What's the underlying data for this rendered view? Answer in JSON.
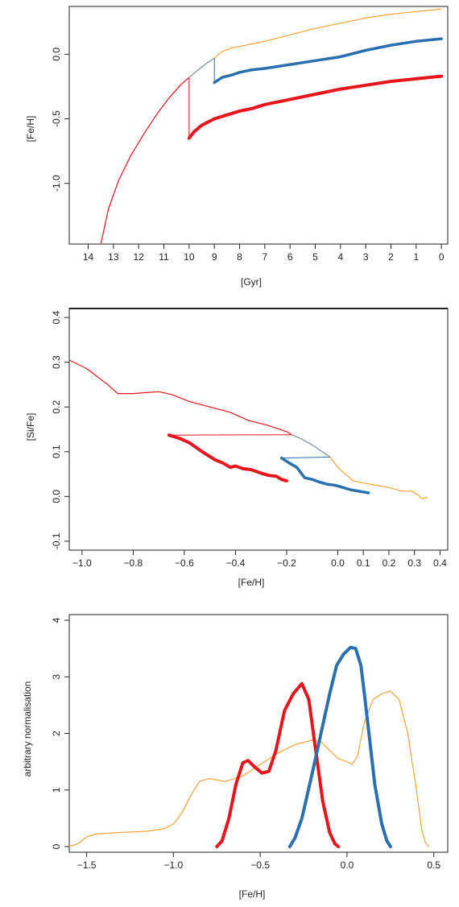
{
  "colors": {
    "red": "#e8141b",
    "blue": "#2a6fb0",
    "orange": "#f4a23c",
    "grey": "#7d8c9c",
    "axis": "#222222"
  },
  "chart_data": [
    {
      "type": "line",
      "xlabel": "[Gyr]",
      "ylabel": "[Fe/H]",
      "xlim": [
        14.75,
        -0.25
      ],
      "ylim": [
        -1.47,
        0.37
      ],
      "x_reversed": true,
      "xticks": [
        14,
        13,
        12,
        11,
        10,
        9,
        8,
        7,
        6,
        5,
        4,
        3,
        2,
        1,
        0
      ],
      "xtick_labels": [
        "14",
        "13",
        "12",
        "11",
        "10",
        "9",
        "8",
        "7",
        "6",
        "5",
        "4",
        "3",
        "2",
        "1",
        "0"
      ],
      "yticks": [
        0.0,
        -0.5,
        -1.0
      ],
      "ytick_labels": [
        "0.0",
        "-0.5",
        "-1.0"
      ],
      "series": [
        {
          "color": "red",
          "width": 1.2,
          "points": [
            [
              13.5,
              -1.47
            ],
            [
              13.2,
              -1.2
            ],
            [
              12.8,
              -0.98
            ],
            [
              12.3,
              -0.78
            ],
            [
              11.8,
              -0.62
            ],
            [
              11.3,
              -0.47
            ],
            [
              10.8,
              -0.34
            ],
            [
              10.3,
              -0.23
            ],
            [
              10.0,
              -0.18
            ]
          ]
        },
        {
          "color": "red",
          "width": 1.0,
          "points": [
            [
              10.0,
              -0.18
            ],
            [
              10.0,
              -0.65
            ]
          ]
        },
        {
          "color": "red",
          "width": 4.0,
          "points": [
            [
              10.0,
              -0.65
            ],
            [
              9.8,
              -0.6
            ],
            [
              9.5,
              -0.55
            ],
            [
              9.0,
              -0.5
            ],
            [
              8.5,
              -0.47
            ],
            [
              8.0,
              -0.44
            ],
            [
              7.5,
              -0.42
            ],
            [
              7.0,
              -0.39
            ],
            [
              6.0,
              -0.35
            ],
            [
              5.0,
              -0.31
            ],
            [
              4.0,
              -0.27
            ],
            [
              3.0,
              -0.24
            ],
            [
              2.0,
              -0.21
            ],
            [
              1.0,
              -0.19
            ],
            [
              0.0,
              -0.17
            ]
          ]
        },
        {
          "color": "grey",
          "width": 1.2,
          "points": [
            [
              10.0,
              -0.18
            ],
            [
              9.7,
              -0.13
            ],
            [
              9.3,
              -0.07
            ],
            [
              9.0,
              -0.03
            ]
          ]
        },
        {
          "color": "blue",
          "width": 1.0,
          "points": [
            [
              9.0,
              -0.03
            ],
            [
              9.0,
              -0.22
            ]
          ]
        },
        {
          "color": "blue",
          "width": 3.5,
          "points": [
            [
              9.0,
              -0.22
            ],
            [
              8.7,
              -0.18
            ],
            [
              8.3,
              -0.16
            ],
            [
              8.0,
              -0.14
            ],
            [
              7.5,
              -0.12
            ],
            [
              7.0,
              -0.11
            ],
            [
              6.0,
              -0.08
            ],
            [
              5.0,
              -0.05
            ],
            [
              4.0,
              -0.02
            ],
            [
              3.0,
              0.03
            ],
            [
              2.0,
              0.07
            ],
            [
              1.0,
              0.1
            ],
            [
              0.0,
              0.12
            ]
          ]
        },
        {
          "color": "orange",
          "width": 1.2,
          "points": [
            [
              9.0,
              -0.03
            ],
            [
              8.7,
              0.02
            ],
            [
              8.3,
              0.05
            ],
            [
              8.0,
              0.06
            ],
            [
              7.5,
              0.08
            ],
            [
              7.0,
              0.1
            ],
            [
              6.0,
              0.15
            ],
            [
              5.0,
              0.2
            ],
            [
              4.0,
              0.24
            ],
            [
              3.0,
              0.28
            ],
            [
              2.0,
              0.31
            ],
            [
              1.0,
              0.33
            ],
            [
              0.0,
              0.35
            ]
          ]
        }
      ]
    },
    {
      "type": "line",
      "xlabel": "[Fe/H]",
      "ylabel": "[Si/Fe]",
      "xlim": [
        -1.05,
        0.43
      ],
      "ylim": [
        -0.12,
        0.42
      ],
      "xticks": [
        -1.0,
        -0.8,
        -0.6,
        -0.4,
        -0.2,
        0.0,
        0.1,
        0.2,
        0.3,
        0.4
      ],
      "xtick_labels": [
        "−1.0",
        "−0.8",
        "−0.6",
        "−0.4",
        "−0.2",
        "0.0",
        "0.1",
        "0.2",
        "0.3",
        "0.4"
      ],
      "yticks": [
        -0.1,
        0.0,
        0.1,
        0.2,
        0.3,
        0.4
      ],
      "ytick_labels": [
        "-0.1",
        "0.0",
        "0.1",
        "0.2",
        "0.3",
        "0.4"
      ],
      "series": [
        {
          "color": "red",
          "width": 1.2,
          "points": [
            [
              -1.05,
              0.305
            ],
            [
              -0.98,
              0.285
            ],
            [
              -0.9,
              0.25
            ],
            [
              -0.86,
              0.23
            ],
            [
              -0.8,
              0.23
            ],
            [
              -0.75,
              0.232
            ],
            [
              -0.7,
              0.234
            ],
            [
              -0.65,
              0.228
            ],
            [
              -0.58,
              0.212
            ],
            [
              -0.5,
              0.2
            ],
            [
              -0.42,
              0.188
            ],
            [
              -0.35,
              0.17
            ],
            [
              -0.28,
              0.16
            ],
            [
              -0.2,
              0.145
            ],
            [
              -0.18,
              0.138
            ]
          ]
        },
        {
          "color": "red",
          "width": 1.0,
          "points": [
            [
              -0.18,
              0.138
            ],
            [
              -0.66,
              0.137
            ]
          ]
        },
        {
          "color": "red",
          "width": 4.0,
          "points": [
            [
              -0.66,
              0.137
            ],
            [
              -0.62,
              0.13
            ],
            [
              -0.58,
              0.12
            ],
            [
              -0.53,
              0.1
            ],
            [
              -0.48,
              0.082
            ],
            [
              -0.45,
              0.075
            ],
            [
              -0.42,
              0.065
            ],
            [
              -0.4,
              0.068
            ],
            [
              -0.37,
              0.062
            ],
            [
              -0.34,
              0.06
            ],
            [
              -0.3,
              0.052
            ],
            [
              -0.27,
              0.047
            ],
            [
              -0.24,
              0.045
            ],
            [
              -0.22,
              0.038
            ],
            [
              -0.2,
              0.035
            ]
          ]
        },
        {
          "color": "grey",
          "width": 1.2,
          "points": [
            [
              -0.18,
              0.138
            ],
            [
              -0.14,
              0.128
            ],
            [
              -0.1,
              0.115
            ],
            [
              -0.06,
              0.1
            ],
            [
              -0.03,
              0.088
            ]
          ]
        },
        {
          "color": "blue",
          "width": 1.0,
          "points": [
            [
              -0.03,
              0.088
            ],
            [
              -0.22,
              0.086
            ]
          ]
        },
        {
          "color": "blue",
          "width": 3.5,
          "points": [
            [
              -0.22,
              0.086
            ],
            [
              -0.19,
              0.075
            ],
            [
              -0.16,
              0.065
            ],
            [
              -0.13,
              0.042
            ],
            [
              -0.1,
              0.038
            ],
            [
              -0.07,
              0.032
            ],
            [
              -0.04,
              0.027
            ],
            [
              -0.01,
              0.025
            ],
            [
              0.02,
              0.02
            ],
            [
              0.05,
              0.015
            ],
            [
              0.08,
              0.012
            ],
            [
              0.1,
              0.01
            ],
            [
              0.12,
              0.008
            ]
          ]
        },
        {
          "color": "orange",
          "width": 1.2,
          "points": [
            [
              -0.03,
              0.088
            ],
            [
              0.0,
              0.065
            ],
            [
              0.03,
              0.05
            ],
            [
              0.06,
              0.035
            ],
            [
              0.1,
              0.03
            ],
            [
              0.15,
              0.025
            ],
            [
              0.2,
              0.02
            ],
            [
              0.25,
              0.012
            ],
            [
              0.29,
              0.012
            ],
            [
              0.31,
              0.005
            ],
            [
              0.33,
              -0.005
            ],
            [
              0.35,
              -0.002
            ]
          ]
        }
      ]
    },
    {
      "type": "line",
      "xlabel": "[Fe/H]",
      "ylabel": "arbitrary normalisation",
      "xlim": [
        -1.6,
        0.58
      ],
      "ylim": [
        -0.1,
        4.1
      ],
      "xticks": [
        -1.5,
        -1.0,
        -0.5,
        0.0,
        0.5
      ],
      "xtick_labels": [
        "−1.5",
        "−1.0",
        "−0.5",
        "0.0",
        "0.5"
      ],
      "yticks": [
        0,
        1,
        2,
        3,
        4
      ],
      "ytick_labels": [
        "0",
        "1",
        "2",
        "3",
        "4"
      ],
      "series": [
        {
          "color": "orange",
          "width": 1.2,
          "points": [
            [
              -1.6,
              0.0
            ],
            [
              -1.55,
              0.05
            ],
            [
              -1.5,
              0.17
            ],
            [
              -1.45,
              0.22
            ],
            [
              -1.3,
              0.25
            ],
            [
              -1.15,
              0.27
            ],
            [
              -1.05,
              0.32
            ],
            [
              -1.0,
              0.4
            ],
            [
              -0.95,
              0.6
            ],
            [
              -0.9,
              0.9
            ],
            [
              -0.85,
              1.15
            ],
            [
              -0.8,
              1.2
            ],
            [
              -0.75,
              1.18
            ],
            [
              -0.7,
              1.15
            ],
            [
              -0.6,
              1.25
            ],
            [
              -0.5,
              1.45
            ],
            [
              -0.4,
              1.65
            ],
            [
              -0.3,
              1.8
            ],
            [
              -0.2,
              1.88
            ],
            [
              -0.15,
              1.85
            ],
            [
              -0.1,
              1.7
            ],
            [
              -0.05,
              1.55
            ],
            [
              0.0,
              1.5
            ],
            [
              0.03,
              1.45
            ],
            [
              0.06,
              1.6
            ],
            [
              0.1,
              2.2
            ],
            [
              0.15,
              2.6
            ],
            [
              0.2,
              2.7
            ],
            [
              0.25,
              2.75
            ],
            [
              0.3,
              2.6
            ],
            [
              0.35,
              2.0
            ],
            [
              0.4,
              1.0
            ],
            [
              0.43,
              0.3
            ],
            [
              0.45,
              0.08
            ],
            [
              0.47,
              0.0
            ]
          ]
        },
        {
          "color": "red",
          "width": 4.0,
          "points": [
            [
              -0.75,
              0.0
            ],
            [
              -0.72,
              0.1
            ],
            [
              -0.68,
              0.5
            ],
            [
              -0.64,
              1.1
            ],
            [
              -0.6,
              1.48
            ],
            [
              -0.57,
              1.52
            ],
            [
              -0.53,
              1.4
            ],
            [
              -0.49,
              1.3
            ],
            [
              -0.45,
              1.33
            ],
            [
              -0.41,
              1.7
            ],
            [
              -0.36,
              2.4
            ],
            [
              -0.31,
              2.7
            ],
            [
              -0.26,
              2.88
            ],
            [
              -0.22,
              2.6
            ],
            [
              -0.18,
              1.7
            ],
            [
              -0.14,
              0.8
            ],
            [
              -0.1,
              0.25
            ],
            [
              -0.07,
              0.05
            ],
            [
              -0.05,
              0.0
            ]
          ]
        },
        {
          "color": "blue",
          "width": 4.0,
          "points": [
            [
              -0.33,
              0.0
            ],
            [
              -0.3,
              0.15
            ],
            [
              -0.26,
              0.5
            ],
            [
              -0.2,
              1.3
            ],
            [
              -0.15,
              2.0
            ],
            [
              -0.1,
              2.7
            ],
            [
              -0.06,
              3.2
            ],
            [
              -0.02,
              3.4
            ],
            [
              0.02,
              3.52
            ],
            [
              0.05,
              3.5
            ],
            [
              0.08,
              3.2
            ],
            [
              0.1,
              2.7
            ],
            [
              0.13,
              1.9
            ],
            [
              0.16,
              1.1
            ],
            [
              0.2,
              0.4
            ],
            [
              0.23,
              0.1
            ],
            [
              0.25,
              0.0
            ]
          ]
        }
      ]
    }
  ]
}
